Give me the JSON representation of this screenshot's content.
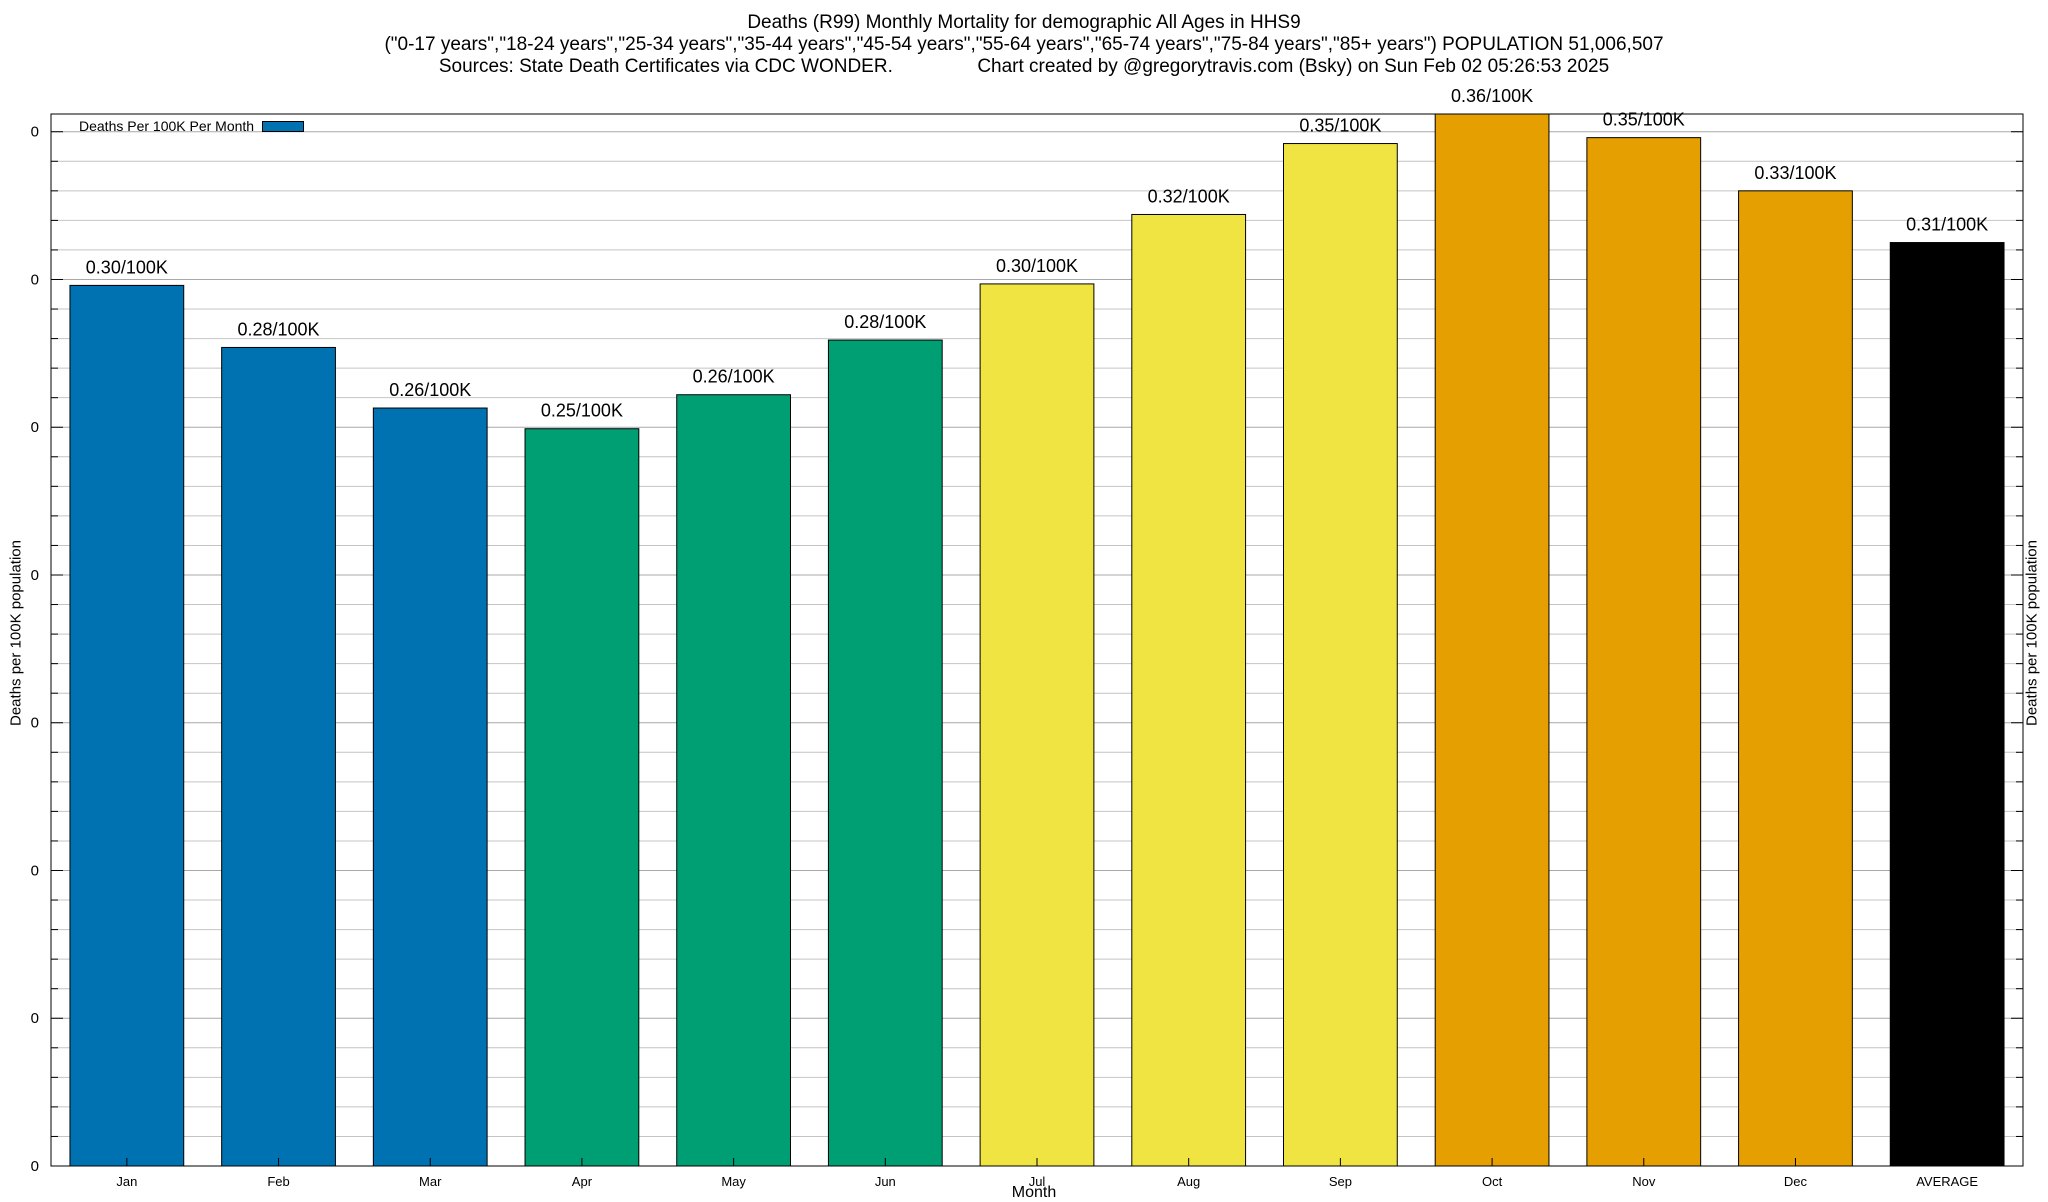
{
  "chart_data": {
    "type": "bar",
    "title": "Deaths (R99) Monthly Mortality for demographic All Ages in HHS9",
    "subtitle": "(\"0-17 years\",\"18-24 years\",\"25-34 years\",\"35-44 years\",\"45-54 years\",\"55-64 years\",\"65-74 years\",\"75-84 years\",\"85+ years\") POPULATION 51,006,507",
    "source_line": "Sources: State Death Certificates via CDC WONDER.                Chart created by @gregorytravis.com (Bsky) on Sun Feb 02 05:26:53 2025",
    "xlabel": "Month",
    "ylabel": "Deaths per 100K population",
    "y2label": "Deaths per 100K population",
    "legend": {
      "label": "Deaths Per 100K Per Month",
      "color": "#0072b2",
      "position": "top-left"
    },
    "categories": [
      "Jan",
      "Feb",
      "Mar",
      "Apr",
      "May",
      "Jun",
      "Jul",
      "Aug",
      "Sep",
      "Oct",
      "Nov",
      "Dec",
      "AVERAGE"
    ],
    "values": [
      0.298,
      0.277,
      0.2565,
      0.2495,
      0.261,
      0.2795,
      0.2985,
      0.322,
      0.346,
      0.356,
      0.348,
      0.33,
      0.3125
    ],
    "value_labels": [
      "0.30/100K",
      "0.28/100K",
      "0.26/100K",
      "0.25/100K",
      "0.26/100K",
      "0.28/100K",
      "0.30/100K",
      "0.32/100K",
      "0.35/100K",
      "0.36/100K",
      "0.35/100K",
      "0.33/100K",
      "0.31/100K"
    ],
    "colors": [
      "#0072b2",
      "#0072b2",
      "#0072b2",
      "#009e73",
      "#009e73",
      "#009e73",
      "#f0e442",
      "#f0e442",
      "#f0e442",
      "#e69f00",
      "#e69f00",
      "#e69f00",
      "#000000"
    ],
    "ylim": [
      0,
      0.356
    ],
    "ytick_values": [
      0,
      0.05,
      0.1,
      0.15,
      0.2,
      0.25,
      0.3,
      0.35
    ],
    "ytick_labels": [
      "0",
      "0",
      "0",
      "0",
      "0",
      "0",
      "0",
      "0"
    ],
    "grid": true
  }
}
